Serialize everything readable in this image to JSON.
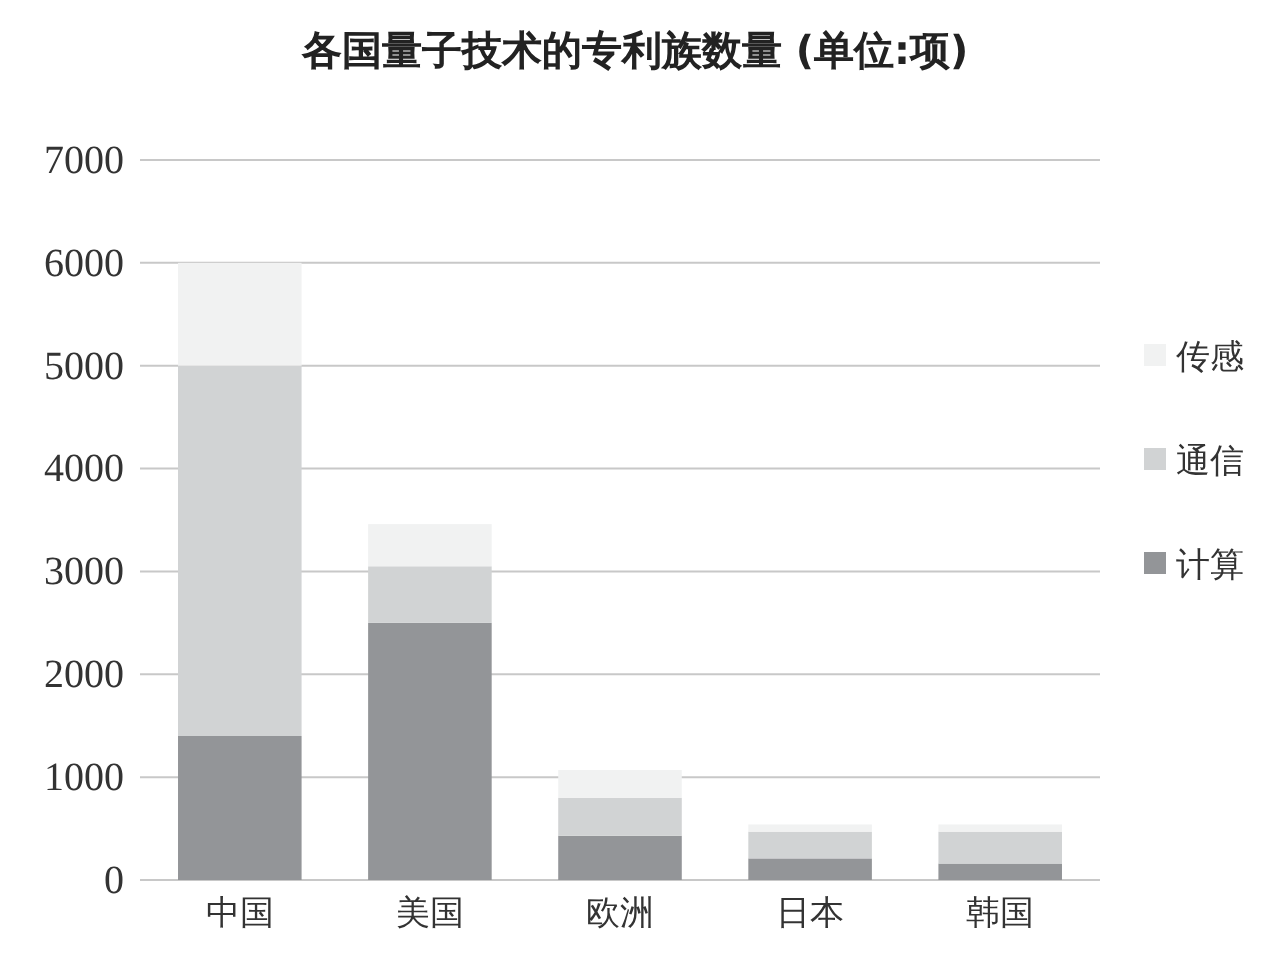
{
  "chart_data": {
    "type": "bar",
    "title": "各国量子技术的专利族数量 (单位:项)",
    "categories": [
      "中国",
      "美国",
      "欧洲",
      "日本",
      "韩国"
    ],
    "stacked": true,
    "series": [
      {
        "name": "计算",
        "color": "#939598",
        "values": [
          1400,
          2500,
          430,
          210,
          160
        ]
      },
      {
        "name": "通信",
        "color": "#d1d3d4",
        "values": [
          3600,
          550,
          370,
          260,
          310
        ]
      },
      {
        "name": "传感",
        "color": "#f1f2f2",
        "values": [
          1000,
          410,
          270,
          70,
          70
        ]
      }
    ],
    "ylim": [
      0,
      7000
    ],
    "yticks": [
      0,
      1000,
      2000,
      3000,
      4000,
      5000,
      6000,
      7000
    ],
    "grid": "y",
    "legend": "right"
  }
}
